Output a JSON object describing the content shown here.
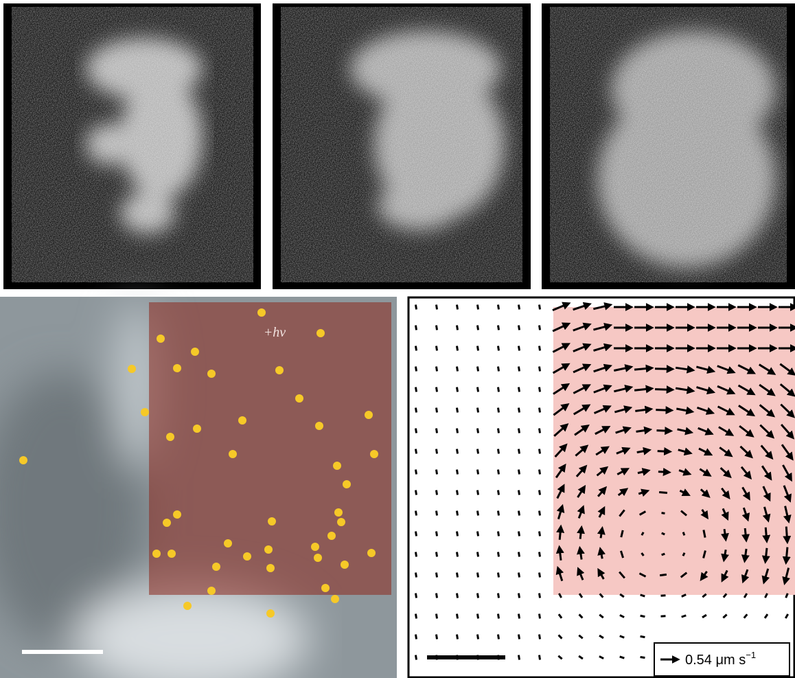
{
  "annotation": "+hν",
  "legend": {
    "text": "0.54 μm s",
    "superscript": "−1"
  }
}
